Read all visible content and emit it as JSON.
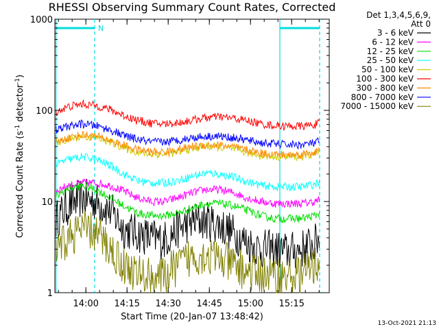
{
  "chart_data": {
    "type": "line",
    "title": "RHESSI Observing Summary Count Rates, Corrected",
    "xlabel": "Start Time (20-Jan-07 13:48:42)",
    "ylabel_main": "Corrected Count Rate (s",
    "ylabel_sup1": "-1",
    "ylabel_mid": " detector",
    "ylabel_sup2": "-1",
    "ylabel_end": ")",
    "y_scale": "log",
    "ylim": [
      1,
      1000
    ],
    "xlim_min": [
      0,
      100
    ],
    "x_ticks": [
      {
        "min": 11.3,
        "label": "14:00"
      },
      {
        "min": 26.3,
        "label": "14:15"
      },
      {
        "min": 41.3,
        "label": "14:30"
      },
      {
        "min": 56.3,
        "label": "14:45"
      },
      {
        "min": 71.3,
        "label": "15:00"
      },
      {
        "min": 86.3,
        "label": "15:15"
      }
    ],
    "y_ticks": [
      {
        "value": 1,
        "label": "1"
      },
      {
        "value": 10,
        "label": "10"
      },
      {
        "value": 100,
        "label": "100"
      },
      {
        "value": 1000,
        "label": "1000"
      }
    ],
    "legend_header": [
      "Det 1,3,4,5,6,9,",
      "Att 0"
    ],
    "legend_position": "right",
    "series": [
      {
        "name": "3 - 6 keV",
        "color": "#000000",
        "x": [
          0,
          5,
          10,
          15,
          20,
          25,
          30,
          35,
          40,
          45,
          50,
          55,
          60,
          65,
          70,
          75,
          80,
          85,
          90,
          95,
          100
        ],
        "values": [
          6,
          9,
          11,
          10,
          8,
          5,
          4.5,
          4,
          3.8,
          5,
          6,
          6.2,
          5.5,
          4.5,
          3.5,
          3,
          3,
          2.8,
          3,
          3.5,
          6
        ]
      },
      {
        "name": "6 - 12 keV",
        "color": "#ff00ff",
        "x": [
          0,
          5,
          10,
          15,
          20,
          25,
          30,
          35,
          40,
          45,
          50,
          55,
          60,
          65,
          70,
          75,
          80,
          85,
          90,
          95,
          100
        ],
        "values": [
          13,
          15,
          16,
          16,
          15,
          13,
          11,
          10,
          10,
          11,
          12.5,
          13.5,
          13.5,
          12.5,
          11,
          10,
          9.5,
          9.5,
          9.5,
          10,
          11.5
        ]
      },
      {
        "name": "12 - 25 keV",
        "color": "#00dd00",
        "x": [
          0,
          5,
          10,
          15,
          20,
          25,
          30,
          35,
          40,
          45,
          50,
          55,
          60,
          65,
          70,
          75,
          80,
          85,
          90,
          95,
          100
        ],
        "values": [
          11,
          14,
          15,
          13.5,
          11,
          9,
          7.5,
          7,
          7,
          7.5,
          8.5,
          9.5,
          9.5,
          9,
          8,
          7,
          6.5,
          6.5,
          6.5,
          7,
          9
        ]
      },
      {
        "name": "25 - 50 keV",
        "color": "#00ffff",
        "x": [
          0,
          5,
          10,
          15,
          20,
          25,
          30,
          35,
          40,
          45,
          50,
          55,
          60,
          65,
          70,
          75,
          80,
          85,
          90,
          95,
          100
        ],
        "values": [
          25,
          29,
          31,
          29,
          25,
          20,
          17,
          16,
          16,
          17,
          19,
          20.5,
          20,
          18.5,
          16.5,
          15,
          14.5,
          14.5,
          14.5,
          15.5,
          20
        ]
      },
      {
        "name": "50 - 100 keV",
        "color": "#cccc00",
        "x": [
          0,
          5,
          10,
          15,
          20,
          25,
          30,
          35,
          40,
          45,
          50,
          55,
          60,
          65,
          70,
          75,
          80,
          85,
          90,
          95,
          100
        ],
        "values": [
          43,
          48,
          52,
          50,
          45,
          39,
          35,
          33,
          33,
          35,
          38,
          40,
          39.5,
          37.5,
          34.5,
          32,
          31,
          31,
          31,
          33,
          40
        ]
      },
      {
        "name": "100 - 300 keV",
        "color": "#ff0000",
        "x": [
          0,
          5,
          10,
          15,
          20,
          25,
          30,
          35,
          40,
          45,
          50,
          55,
          60,
          65,
          70,
          75,
          80,
          85,
          90,
          95,
          100
        ],
        "values": [
          95,
          110,
          117,
          113,
          102,
          88,
          78,
          72,
          71,
          73,
          78,
          83,
          85,
          82,
          77,
          71,
          68,
          67,
          67,
          70,
          82
        ]
      },
      {
        "name": "300 - 800 keV",
        "color": "#ff8800",
        "x": [
          0,
          5,
          10,
          15,
          20,
          25,
          30,
          35,
          40,
          45,
          50,
          55,
          60,
          65,
          70,
          75,
          80,
          85,
          90,
          95,
          100
        ],
        "values": [
          44,
          50,
          54,
          52,
          47,
          41,
          37,
          35,
          35,
          37,
          40,
          42,
          41.5,
          39.5,
          36.5,
          34,
          33,
          32.5,
          33,
          35,
          41
        ]
      },
      {
        "name": "800 - 7000 keV",
        "color": "#0000ff",
        "x": [
          0,
          5,
          10,
          15,
          20,
          25,
          30,
          35,
          40,
          45,
          50,
          55,
          60,
          65,
          70,
          75,
          80,
          85,
          90,
          95,
          100
        ],
        "values": [
          60,
          67,
          71,
          68,
          61,
          53,
          48,
          45,
          45,
          47,
          50,
          52,
          52,
          50,
          47,
          44,
          43,
          42,
          42,
          44,
          52
        ]
      },
      {
        "name": "7000 - 15000 keV",
        "color": "#808000",
        "x": [
          0,
          5,
          10,
          15,
          20,
          25,
          30,
          35,
          40,
          45,
          50,
          55,
          60,
          65,
          70,
          75,
          80,
          85,
          90,
          95,
          100
        ],
        "values": [
          2.5,
          4,
          5,
          4.5,
          3,
          2,
          1.6,
          1.5,
          1.5,
          2,
          2.5,
          2.6,
          2.3,
          2,
          1.7,
          1.6,
          1.5,
          1.5,
          1.6,
          2,
          3
        ]
      }
    ],
    "annotations": {
      "bar_label": "N",
      "bar_color": "#00dddd",
      "solid_lines_min": [
        0.4,
        82
      ],
      "dashed_lines_min": [
        14.5,
        96.5
      ],
      "top_bars": [
        [
          0.4,
          14.5
        ],
        [
          82,
          96.5
        ]
      ]
    },
    "footer_timestamp": "13-Oct-2021 21:13"
  }
}
